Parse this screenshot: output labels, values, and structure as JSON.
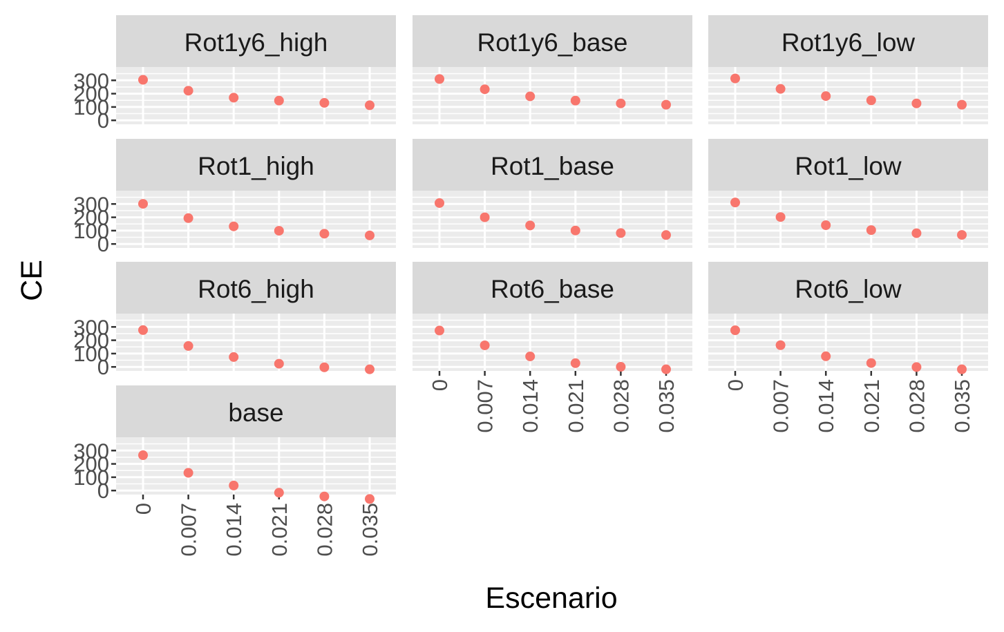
{
  "chart_data": {
    "type": "scatter",
    "facet_layout": "wrap 3 columns",
    "xlabel": "Escenario",
    "ylabel": "CE",
    "x_categories": [
      "0",
      "0.007",
      "0.014",
      "0.021",
      "0.028",
      "0.035"
    ],
    "y_ticks": [
      0,
      100,
      200,
      300
    ],
    "y_tick_labels": [
      "0",
      "100",
      "200",
      "300"
    ],
    "ylim": [
      -30,
      400
    ],
    "grid": true,
    "legend": "none",
    "point_color": "#F8766D",
    "panel_bg": "#EBEBEB",
    "strip_bg": "#D9D9D9",
    "panels": [
      {
        "name": "Rot1y6_high",
        "values": [
          304,
          222,
          170,
          148,
          131,
          113
        ]
      },
      {
        "name": "Rot1y6_base",
        "values": [
          310,
          233,
          180,
          148,
          127,
          117
        ]
      },
      {
        "name": "Rot1y6_low",
        "values": [
          314,
          236,
          182,
          150,
          127,
          117
        ]
      },
      {
        "name": "Rot1_high",
        "values": [
          301,
          194,
          132,
          99,
          77,
          64
        ]
      },
      {
        "name": "Rot1_base",
        "values": [
          307,
          200,
          139,
          101,
          82,
          67
        ]
      },
      {
        "name": "Rot1_low",
        "values": [
          311,
          202,
          141,
          104,
          81,
          68
        ]
      },
      {
        "name": "Rot6_high",
        "values": [
          276,
          157,
          74,
          24,
          -3,
          -18
        ]
      },
      {
        "name": "Rot6_base",
        "values": [
          273,
          162,
          79,
          28,
          1,
          -18
        ]
      },
      {
        "name": "Rot6_low",
        "values": [
          275,
          163,
          80,
          29,
          -1,
          -18
        ]
      },
      {
        "name": "base",
        "values": [
          265,
          133,
          38,
          -16,
          -44,
          -63
        ]
      }
    ]
  }
}
